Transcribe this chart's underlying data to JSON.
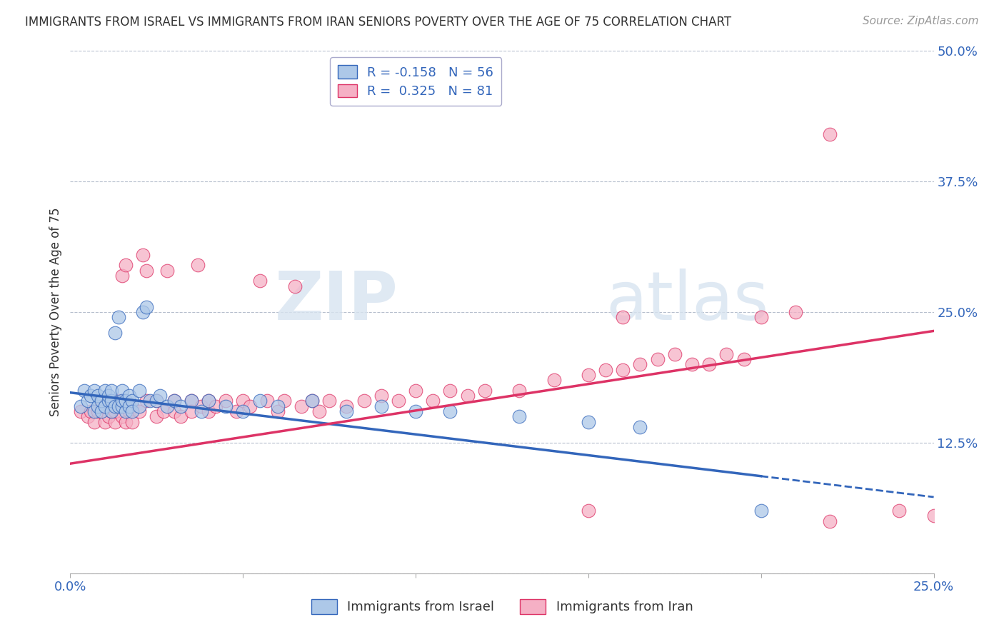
{
  "title": "IMMIGRANTS FROM ISRAEL VS IMMIGRANTS FROM IRAN SENIORS POVERTY OVER THE AGE OF 75 CORRELATION CHART",
  "source": "Source: ZipAtlas.com",
  "ylabel": "Seniors Poverty Over the Age of 75",
  "y_ticks": [
    0.0,
    0.125,
    0.25,
    0.375,
    0.5
  ],
  "y_tick_labels": [
    "",
    "12.5%",
    "25.0%",
    "37.5%",
    "50.0%"
  ],
  "x_ticks": [
    0.0,
    0.05,
    0.1,
    0.15,
    0.2,
    0.25
  ],
  "x_tick_labels": [
    "0.0%",
    "",
    "",
    "",
    "",
    "25.0%"
  ],
  "xlim": [
    0.0,
    0.25
  ],
  "ylim": [
    0.0,
    0.5
  ],
  "israel_R": -0.158,
  "israel_N": 56,
  "iran_R": 0.325,
  "iran_N": 81,
  "israel_color": "#adc8e8",
  "iran_color": "#f5b0c5",
  "israel_line_color": "#3366bb",
  "iran_line_color": "#dd3366",
  "legend_label_israel": "Immigrants from Israel",
  "legend_label_iran": "Immigrants from Iran",
  "watermark_zip": "ZIP",
  "watermark_atlas": "atlas",
  "background_color": "#ffffff",
  "grid_color": "#b0b8c8",
  "israel_trend_x0": 0.0,
  "israel_trend_y0": 0.173,
  "israel_trend_x1": 0.2,
  "israel_trend_y1": 0.093,
  "israel_trend_xsolid": 0.2,
  "israel_trend_xdash": 0.25,
  "iran_trend_x0": 0.0,
  "iran_trend_y0": 0.105,
  "iran_trend_x1": 0.25,
  "iran_trend_y1": 0.232,
  "israel_scatter_x": [
    0.003,
    0.004,
    0.005,
    0.006,
    0.007,
    0.007,
    0.008,
    0.008,
    0.009,
    0.009,
    0.01,
    0.01,
    0.011,
    0.011,
    0.012,
    0.012,
    0.012,
    0.013,
    0.013,
    0.014,
    0.014,
    0.015,
    0.015,
    0.015,
    0.016,
    0.016,
    0.017,
    0.017,
    0.018,
    0.018,
    0.02,
    0.02,
    0.021,
    0.022,
    0.023,
    0.025,
    0.026,
    0.028,
    0.03,
    0.032,
    0.035,
    0.038,
    0.04,
    0.045,
    0.05,
    0.055,
    0.06,
    0.07,
    0.08,
    0.09,
    0.1,
    0.11,
    0.13,
    0.15,
    0.165,
    0.2
  ],
  "israel_scatter_y": [
    0.16,
    0.175,
    0.165,
    0.17,
    0.155,
    0.175,
    0.16,
    0.17,
    0.155,
    0.165,
    0.175,
    0.16,
    0.165,
    0.17,
    0.155,
    0.165,
    0.175,
    0.16,
    0.23,
    0.245,
    0.16,
    0.175,
    0.16,
    0.165,
    0.155,
    0.165,
    0.17,
    0.16,
    0.165,
    0.155,
    0.16,
    0.175,
    0.25,
    0.255,
    0.165,
    0.165,
    0.17,
    0.16,
    0.165,
    0.16,
    0.165,
    0.155,
    0.165,
    0.16,
    0.155,
    0.165,
    0.16,
    0.165,
    0.155,
    0.16,
    0.155,
    0.155,
    0.15,
    0.145,
    0.14,
    0.06
  ],
  "iran_scatter_x": [
    0.003,
    0.005,
    0.006,
    0.007,
    0.008,
    0.009,
    0.01,
    0.01,
    0.011,
    0.012,
    0.012,
    0.013,
    0.013,
    0.014,
    0.015,
    0.015,
    0.016,
    0.016,
    0.017,
    0.018,
    0.018,
    0.02,
    0.021,
    0.022,
    0.022,
    0.025,
    0.025,
    0.027,
    0.028,
    0.03,
    0.03,
    0.032,
    0.035,
    0.035,
    0.037,
    0.038,
    0.04,
    0.04,
    0.042,
    0.045,
    0.048,
    0.05,
    0.052,
    0.055,
    0.057,
    0.06,
    0.062,
    0.065,
    0.067,
    0.07,
    0.072,
    0.075,
    0.08,
    0.085,
    0.09,
    0.095,
    0.1,
    0.105,
    0.11,
    0.115,
    0.12,
    0.13,
    0.14,
    0.15,
    0.155,
    0.16,
    0.165,
    0.17,
    0.175,
    0.18,
    0.185,
    0.19,
    0.195,
    0.2,
    0.21,
    0.22,
    0.24,
    0.25,
    0.16,
    0.22,
    0.15
  ],
  "iran_scatter_y": [
    0.155,
    0.15,
    0.155,
    0.145,
    0.155,
    0.16,
    0.145,
    0.16,
    0.15,
    0.155,
    0.16,
    0.145,
    0.155,
    0.165,
    0.15,
    0.285,
    0.145,
    0.295,
    0.155,
    0.145,
    0.16,
    0.155,
    0.305,
    0.29,
    0.165,
    0.15,
    0.165,
    0.155,
    0.29,
    0.155,
    0.165,
    0.15,
    0.165,
    0.155,
    0.295,
    0.16,
    0.155,
    0.165,
    0.16,
    0.165,
    0.155,
    0.165,
    0.16,
    0.28,
    0.165,
    0.155,
    0.165,
    0.275,
    0.16,
    0.165,
    0.155,
    0.165,
    0.16,
    0.165,
    0.17,
    0.165,
    0.175,
    0.165,
    0.175,
    0.17,
    0.175,
    0.175,
    0.185,
    0.19,
    0.195,
    0.195,
    0.2,
    0.205,
    0.21,
    0.2,
    0.2,
    0.21,
    0.205,
    0.245,
    0.25,
    0.05,
    0.06,
    0.055,
    0.245,
    0.42,
    0.06
  ]
}
